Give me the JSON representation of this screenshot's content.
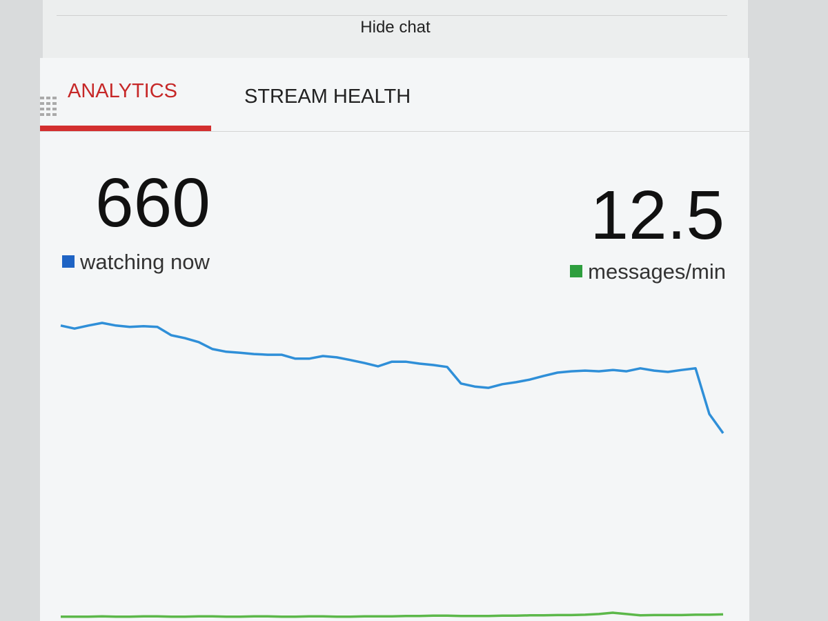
{
  "header": {
    "button": "Hide chat"
  },
  "tabs": [
    "ANALYTICS",
    "STREAM HEALTH"
  ],
  "stats": [
    {
      "value": 660,
      "label": "watching now",
      "color": "#1e63c4"
    },
    {
      "value": 12.5,
      "label": "messages/min",
      "color": "#2e9e3e"
    }
  ],
  "chart_data": {
    "type": "line",
    "ylim": [
      0,
      100
    ],
    "series": [
      {
        "color": "#2f8fd8",
        "values": [
          89.2,
          88.3,
          89.2,
          90,
          89.2,
          88.8,
          89,
          88.8,
          86.3,
          85.4,
          84.2,
          82.1,
          81.3,
          81,
          80.6,
          80.4,
          80.4,
          79.2,
          79.2,
          80,
          79.6,
          78.8,
          77.9,
          76.9,
          78.3,
          78.3,
          77.7,
          77.3,
          76.7,
          71.7,
          70.8,
          70.4,
          71.5,
          72.1,
          72.9,
          74,
          75,
          75.4,
          75.6,
          75.4,
          75.8,
          75.4,
          76.3,
          75.6,
          75.2,
          75.8,
          76.3,
          62.5,
          56.7
        ]
      },
      {
        "color": "#5cb84a",
        "values": [
          1.3,
          1.3,
          1.3,
          1.4,
          1.3,
          1.3,
          1.4,
          1.4,
          1.3,
          1.3,
          1.4,
          1.4,
          1.3,
          1.3,
          1.4,
          1.4,
          1.3,
          1.3,
          1.4,
          1.4,
          1.3,
          1.3,
          1.4,
          1.4,
          1.4,
          1.5,
          1.5,
          1.6,
          1.6,
          1.5,
          1.5,
          1.5,
          1.6,
          1.6,
          1.7,
          1.7,
          1.8,
          1.8,
          1.9,
          2.1,
          2.5,
          2.1,
          1.7,
          1.8,
          1.8,
          1.8,
          1.9,
          1.9,
          2
        ]
      }
    ]
  }
}
